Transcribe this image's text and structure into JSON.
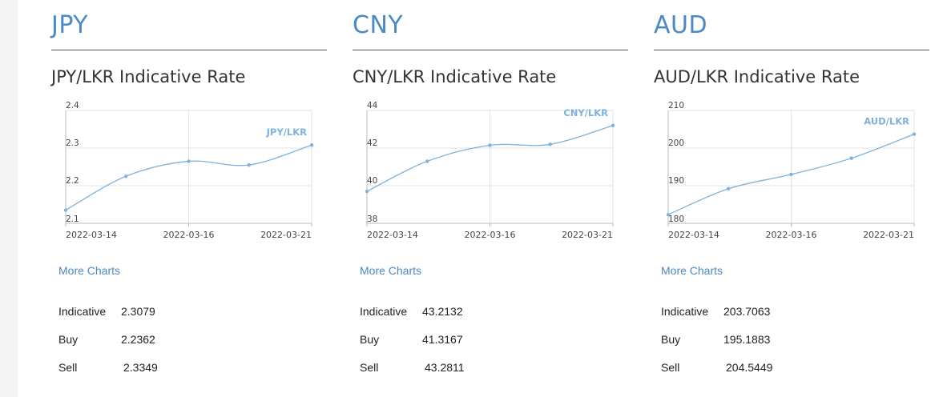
{
  "more_charts_label": "More Charts",
  "panels": [
    {
      "code": "JPY",
      "title": "JPY/LKR Indicative Rate",
      "rates": [
        {
          "label": "Indicative",
          "value": "2.3079"
        },
        {
          "label": "Buy",
          "value": "2.2362"
        },
        {
          "label": "Sell",
          "value": "2.3349"
        }
      ]
    },
    {
      "code": "CNY",
      "title": "CNY/LKR Indicative Rate",
      "rates": [
        {
          "label": "Indicative",
          "value": "43.2132"
        },
        {
          "label": "Buy",
          "value": "41.3167"
        },
        {
          "label": "Sell",
          "value": "43.2811"
        }
      ]
    },
    {
      "code": "AUD",
      "title": "AUD/LKR Indicative Rate",
      "rates": [
        {
          "label": "Indicative",
          "value": "203.7063"
        },
        {
          "label": "Buy",
          "value": "195.1883"
        },
        {
          "label": "Sell",
          "value": "204.5449"
        }
      ]
    }
  ],
  "colors": {
    "accent": "#4a8ac6",
    "line": "#7fb2dc",
    "grid": "#e3e3e3"
  },
  "chart_data": [
    {
      "type": "line",
      "title": "JPY/LKR Indicative Rate",
      "x": [
        "2022-03-14",
        "2022-03-15",
        "2022-03-16",
        "2022-03-17",
        "2022-03-21"
      ],
      "x_tick_labels": [
        "2022-03-14",
        "2022-03-16",
        "2022-03-21"
      ],
      "series": [
        {
          "name": "JPY/LKR",
          "values": [
            2.135,
            2.225,
            2.265,
            2.255,
            2.308
          ]
        }
      ],
      "ylim": [
        2.1,
        2.4
      ],
      "y_ticks": [
        "2.1",
        "2.2",
        "2.3",
        "2.4"
      ],
      "grid": true,
      "legend": "top-right"
    },
    {
      "type": "line",
      "title": "CNY/LKR Indicative Rate",
      "x": [
        "2022-03-14",
        "2022-03-15",
        "2022-03-16",
        "2022-03-17",
        "2022-03-21"
      ],
      "x_tick_labels": [
        "2022-03-14",
        "2022-03-16",
        "2022-03-21"
      ],
      "series": [
        {
          "name": "CNY/LKR",
          "values": [
            39.7,
            41.3,
            42.15,
            42.2,
            43.2
          ]
        }
      ],
      "ylim": [
        38,
        44
      ],
      "y_ticks": [
        "38",
        "40",
        "42",
        "44"
      ],
      "grid": true,
      "legend": "top-right"
    },
    {
      "type": "line",
      "title": "AUD/LKR Indicative Rate",
      "x": [
        "2022-03-14",
        "2022-03-15",
        "2022-03-16",
        "2022-03-17",
        "2022-03-21"
      ],
      "x_tick_labels": [
        "2022-03-14",
        "2022-03-16",
        "2022-03-21"
      ],
      "series": [
        {
          "name": "AUD/LKR",
          "values": [
            182.3,
            189.2,
            193.0,
            197.3,
            203.7
          ]
        }
      ],
      "ylim": [
        180,
        210
      ],
      "y_ticks": [
        "180",
        "190",
        "200",
        "210"
      ],
      "grid": true,
      "legend": "top-right"
    }
  ]
}
